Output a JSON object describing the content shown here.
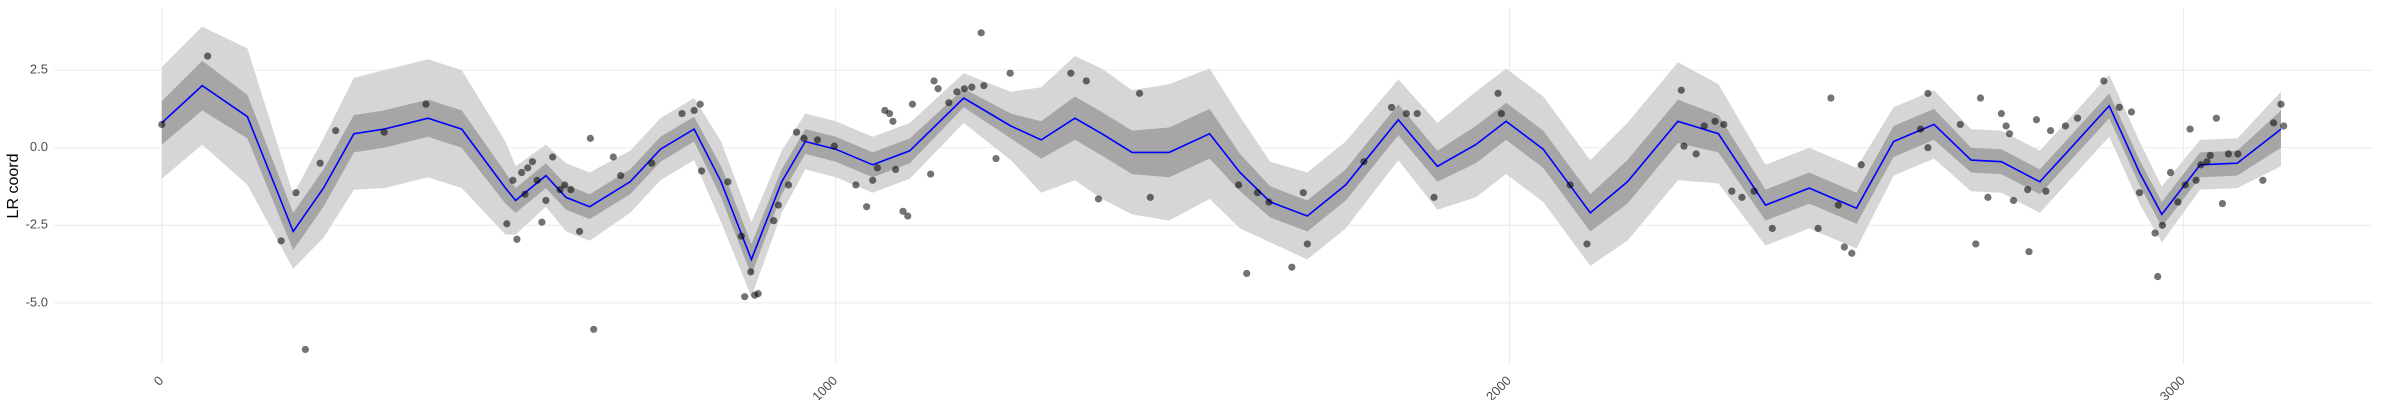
{
  "chart_data": {
    "type": "scatter",
    "y_label": "LR coord",
    "xlim": [
      -160,
      3280
    ],
    "ylim": [
      -7.0,
      4.5
    ],
    "xticks": [
      0,
      1000,
      2000,
      3000
    ],
    "yticks": [
      {
        "value": -5,
        "label": "-5.0"
      },
      -2.5,
      {
        "value": 0,
        "label": "0.0"
      },
      2.5
    ],
    "grid": true,
    "points": {
      "color": "#000000",
      "x": [
        0,
        68,
        177,
        199,
        213,
        235,
        258,
        330,
        392,
        512,
        521,
        527,
        534,
        539,
        543,
        550,
        557,
        564,
        570,
        580,
        591,
        598,
        607,
        620,
        636,
        641,
        670,
        681,
        727,
        772,
        790,
        799,
        801,
        840,
        860,
        865,
        874,
        880,
        885,
        908,
        915,
        930,
        942,
        953,
        973,
        998,
        1030,
        1046,
        1055,
        1062,
        1073,
        1080,
        1085,
        1089,
        1100,
        1107,
        1114,
        1141,
        1146,
        1152,
        1168,
        1180,
        1191,
        1202,
        1216,
        1220,
        1238,
        1259,
        1349,
        1372,
        1390,
        1451,
        1467,
        1598,
        1610,
        1626,
        1643,
        1677,
        1694,
        1700,
        1784,
        1825,
        1847,
        1863,
        1888,
        1983,
        1988,
        2090,
        2115,
        2255,
        2259,
        2277,
        2289,
        2305,
        2318,
        2330,
        2345,
        2363,
        2390,
        2458,
        2477,
        2488,
        2497,
        2508,
        2522,
        2610,
        2621,
        2621,
        2669,
        2692,
        2699,
        2710,
        2730,
        2737,
        2742,
        2748,
        2769,
        2771,
        2782,
        2796,
        2803,
        2825,
        2843,
        2882,
        2905,
        2923,
        2935,
        2958,
        2962,
        2969,
        2981,
        2992,
        3003,
        3010,
        3019,
        3026,
        3035,
        3040,
        3049,
        3058,
        3067,
        3081,
        3118,
        3134,
        3145,
        3149
      ],
      "y": [
        0.75,
        2.95,
        -3.0,
        -1.45,
        -6.5,
        -0.5,
        0.55,
        0.5,
        1.4,
        -2.45,
        -1.05,
        -2.95,
        -0.8,
        -1.5,
        -0.65,
        -0.45,
        -1.05,
        -2.4,
        -1.7,
        -0.3,
        -1.35,
        -1.2,
        -1.35,
        -2.7,
        0.3,
        -5.85,
        -0.3,
        -0.9,
        -0.5,
        1.1,
        1.2,
        1.4,
        -0.75,
        -1.1,
        -2.85,
        -4.8,
        -4.0,
        -4.75,
        -4.7,
        -2.35,
        -1.85,
        -1.2,
        0.5,
        0.3,
        0.25,
        0.05,
        -1.2,
        -1.9,
        -1.05,
        -0.65,
        1.2,
        1.1,
        0.85,
        -0.7,
        -2.05,
        -2.2,
        1.4,
        -0.85,
        2.15,
        1.9,
        1.45,
        1.8,
        1.9,
        1.95,
        3.7,
        2.0,
        -0.35,
        2.4,
        2.4,
        2.15,
        -1.65,
        1.75,
        -1.6,
        -1.2,
        -4.05,
        -1.45,
        -1.75,
        -3.85,
        -1.45,
        -3.1,
        -0.45,
        1.3,
        1.1,
        1.1,
        -1.6,
        1.75,
        1.1,
        -1.2,
        -3.1,
        1.85,
        0.05,
        -0.2,
        0.7,
        0.85,
        0.75,
        -1.4,
        -1.6,
        -1.4,
        -2.6,
        -2.6,
        1.6,
        -1.85,
        -3.2,
        -3.4,
        -0.55,
        0.6,
        1.75,
        0.0,
        0.75,
        -3.1,
        1.6,
        -1.6,
        1.1,
        0.7,
        0.45,
        -1.7,
        -1.35,
        -3.35,
        0.9,
        -1.4,
        0.55,
        0.7,
        0.95,
        2.15,
        1.3,
        1.15,
        -1.45,
        -2.75,
        -4.15,
        -2.5,
        -0.8,
        -1.75,
        -1.2,
        0.6,
        -1.05,
        -0.55,
        -0.45,
        -0.25,
        0.95,
        -1.8,
        -0.2,
        -0.2,
        -1.05,
        0.8,
        1.4,
        0.7
      ]
    },
    "smooth": {
      "color": "#0000ff",
      "x": [
        0,
        60,
        127,
        195,
        240,
        285,
        330,
        395,
        445,
        510,
        525,
        570,
        600,
        635,
        695,
        740,
        790,
        830,
        875,
        920,
        955,
        1000,
        1055,
        1110,
        1190,
        1260,
        1305,
        1355,
        1395,
        1440,
        1495,
        1555,
        1600,
        1645,
        1700,
        1757,
        1835,
        1893,
        1950,
        1995,
        2050,
        2120,
        2175,
        2250,
        2310,
        2380,
        2445,
        2515,
        2570,
        2630,
        2685,
        2730,
        2787,
        2825,
        2890,
        2935,
        2968,
        3025,
        3080,
        3145
      ],
      "y": [
        0.8,
        2.0,
        1.0,
        -2.7,
        -1.3,
        0.45,
        0.6,
        0.95,
        0.6,
        -1.3,
        -1.7,
        -0.9,
        -1.6,
        -1.9,
        -1.1,
        -0.05,
        0.6,
        -1.1,
        -3.6,
        -1.1,
        0.2,
        -0.05,
        -0.55,
        -0.1,
        1.6,
        0.7,
        0.25,
        0.95,
        0.45,
        -0.15,
        -0.15,
        0.45,
        -0.8,
        -1.75,
        -2.2,
        -1.2,
        0.9,
        -0.6,
        0.1,
        0.85,
        -0.05,
        -2.1,
        -1.1,
        0.85,
        0.45,
        -1.85,
        -1.3,
        -1.95,
        0.2,
        0.75,
        -0.4,
        -0.45,
        -1.1,
        -0.2,
        1.35,
        -0.8,
        -2.15,
        -0.55,
        -0.5,
        0.6
      ],
      "inner": {
        "color": "#a6a6a6",
        "lower": [
          0.1,
          1.2,
          0.3,
          -3.3,
          -1.9,
          -0.15,
          0.0,
          0.35,
          0.0,
          -1.8,
          -2.1,
          -1.3,
          -2.0,
          -2.3,
          -1.5,
          -0.45,
          0.2,
          -1.6,
          -4.1,
          -1.5,
          -0.2,
          -0.45,
          -0.95,
          -0.5,
          1.3,
          0.3,
          -0.35,
          0.25,
          -0.25,
          -0.85,
          -0.95,
          -0.35,
          -1.4,
          -2.25,
          -2.7,
          -1.7,
          0.4,
          -1.1,
          -0.5,
          0.25,
          -0.65,
          -2.7,
          -1.8,
          0.15,
          -0.15,
          -2.35,
          -1.8,
          -2.45,
          -0.3,
          0.25,
          -0.8,
          -0.85,
          -1.5,
          -0.6,
          0.95,
          -1.2,
          -2.55,
          -0.95,
          -0.9,
          0.0
        ],
        "upper": [
          1.5,
          2.8,
          1.7,
          -2.1,
          -0.7,
          1.05,
          1.2,
          1.55,
          1.2,
          -0.8,
          -1.3,
          -0.5,
          -1.2,
          -1.5,
          -0.7,
          0.35,
          1.0,
          -0.6,
          -3.1,
          -0.7,
          0.6,
          0.35,
          -0.15,
          0.3,
          1.9,
          1.1,
          0.85,
          1.65,
          1.15,
          0.55,
          0.65,
          1.25,
          -0.2,
          -1.25,
          -1.7,
          -0.7,
          1.4,
          -0.1,
          0.7,
          1.45,
          0.55,
          -1.5,
          -0.4,
          1.55,
          1.05,
          -1.35,
          -0.8,
          -1.45,
          0.7,
          1.25,
          0.0,
          -0.05,
          -0.7,
          0.2,
          1.75,
          -0.4,
          -1.75,
          -0.15,
          -0.1,
          1.2
        ]
      },
      "outer": {
        "color": "#d6d6d6",
        "lower": [
          -1.0,
          0.1,
          -1.2,
          -3.9,
          -2.9,
          -1.35,
          -1.3,
          -0.95,
          -1.3,
          -2.8,
          -2.8,
          -1.9,
          -2.7,
          -3.0,
          -2.1,
          -1.05,
          -0.4,
          -2.4,
          -4.8,
          -2.1,
          -0.7,
          -0.95,
          -1.45,
          -1.0,
          0.8,
          -0.4,
          -1.45,
          -1.05,
          -1.65,
          -2.15,
          -2.35,
          -1.65,
          -2.6,
          -3.05,
          -3.6,
          -2.6,
          -0.4,
          -2.0,
          -1.6,
          -0.85,
          -1.75,
          -3.8,
          -3.0,
          -1.05,
          -1.15,
          -3.15,
          -2.6,
          -3.25,
          -0.9,
          -0.35,
          -1.4,
          -1.45,
          -2.1,
          -1.2,
          0.35,
          -1.8,
          -3.05,
          -1.35,
          -1.3,
          -0.6
        ],
        "upper": [
          2.6,
          3.9,
          3.2,
          -1.5,
          0.3,
          2.25,
          2.5,
          2.85,
          2.5,
          0.2,
          -0.6,
          0.1,
          -0.5,
          -0.8,
          -0.1,
          0.95,
          1.6,
          0.2,
          -2.4,
          -0.1,
          1.1,
          0.85,
          0.35,
          0.8,
          2.4,
          1.8,
          1.95,
          2.95,
          2.55,
          1.85,
          2.05,
          2.55,
          1.0,
          -0.45,
          -0.8,
          0.2,
          2.2,
          0.8,
          1.8,
          2.55,
          1.65,
          -0.4,
          0.8,
          2.75,
          2.05,
          -0.55,
          0.0,
          -0.65,
          1.3,
          1.85,
          0.6,
          0.55,
          -0.1,
          0.8,
          2.35,
          0.2,
          -1.25,
          0.25,
          0.3,
          1.8
        ]
      }
    }
  }
}
